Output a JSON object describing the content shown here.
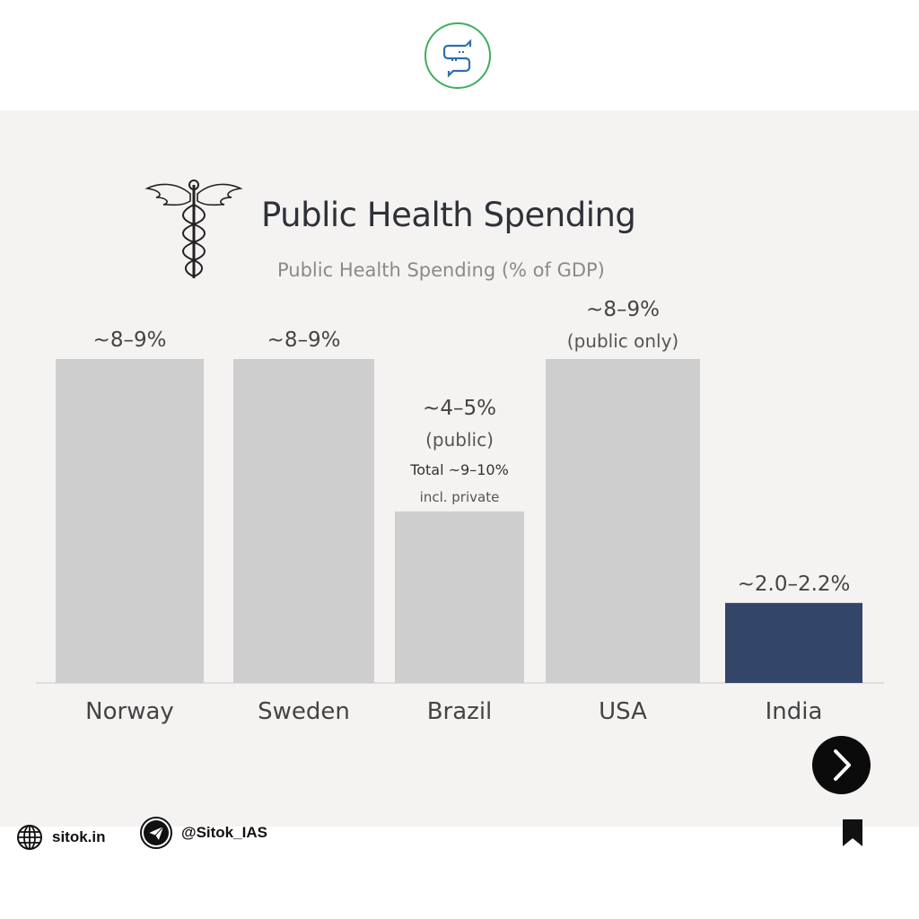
{
  "header": {
    "logo_icon": "chat-bubbles-s-logo"
  },
  "chart_data": {
    "type": "bar",
    "title": "Public Health Spending",
    "subtitle": "Public Health Spending (% of GDP)",
    "categories": [
      "Norway",
      "Sweden",
      "Brazil",
      "USA",
      "India"
    ],
    "values": [
      8.5,
      8.5,
      4.5,
      8.5,
      2.1
    ],
    "ranges": [
      [
        8,
        9
      ],
      [
        8,
        9
      ],
      [
        4,
        5
      ],
      [
        8,
        9
      ],
      [
        2.0,
        2.2
      ]
    ],
    "data_labels": [
      "~8–9%",
      "~8–9%",
      "~4–5%",
      "~8–9%",
      "~2.0–2.2%"
    ],
    "sub_labels": [
      "",
      "",
      "(public)",
      "(public only)",
      ""
    ],
    "notes": [
      "",
      "",
      "Total ~9–10%",
      "",
      ""
    ],
    "notes2": [
      "",
      "",
      "incl. private",
      "",
      ""
    ],
    "colors": [
      "#cfcecf",
      "#cfcecf",
      "#cfcecf",
      "#cfcecf",
      "#33466a"
    ],
    "ylim": [
      0,
      9.5
    ],
    "grid": false,
    "legend": "none"
  },
  "footer": {
    "website": "sitok.in",
    "telegram": "@Sitok_IAS"
  },
  "icons": {
    "globe": "globe-icon",
    "telegram": "telegram-icon",
    "next": "chevron-right-icon",
    "bookmark": "bookmark-icon"
  }
}
